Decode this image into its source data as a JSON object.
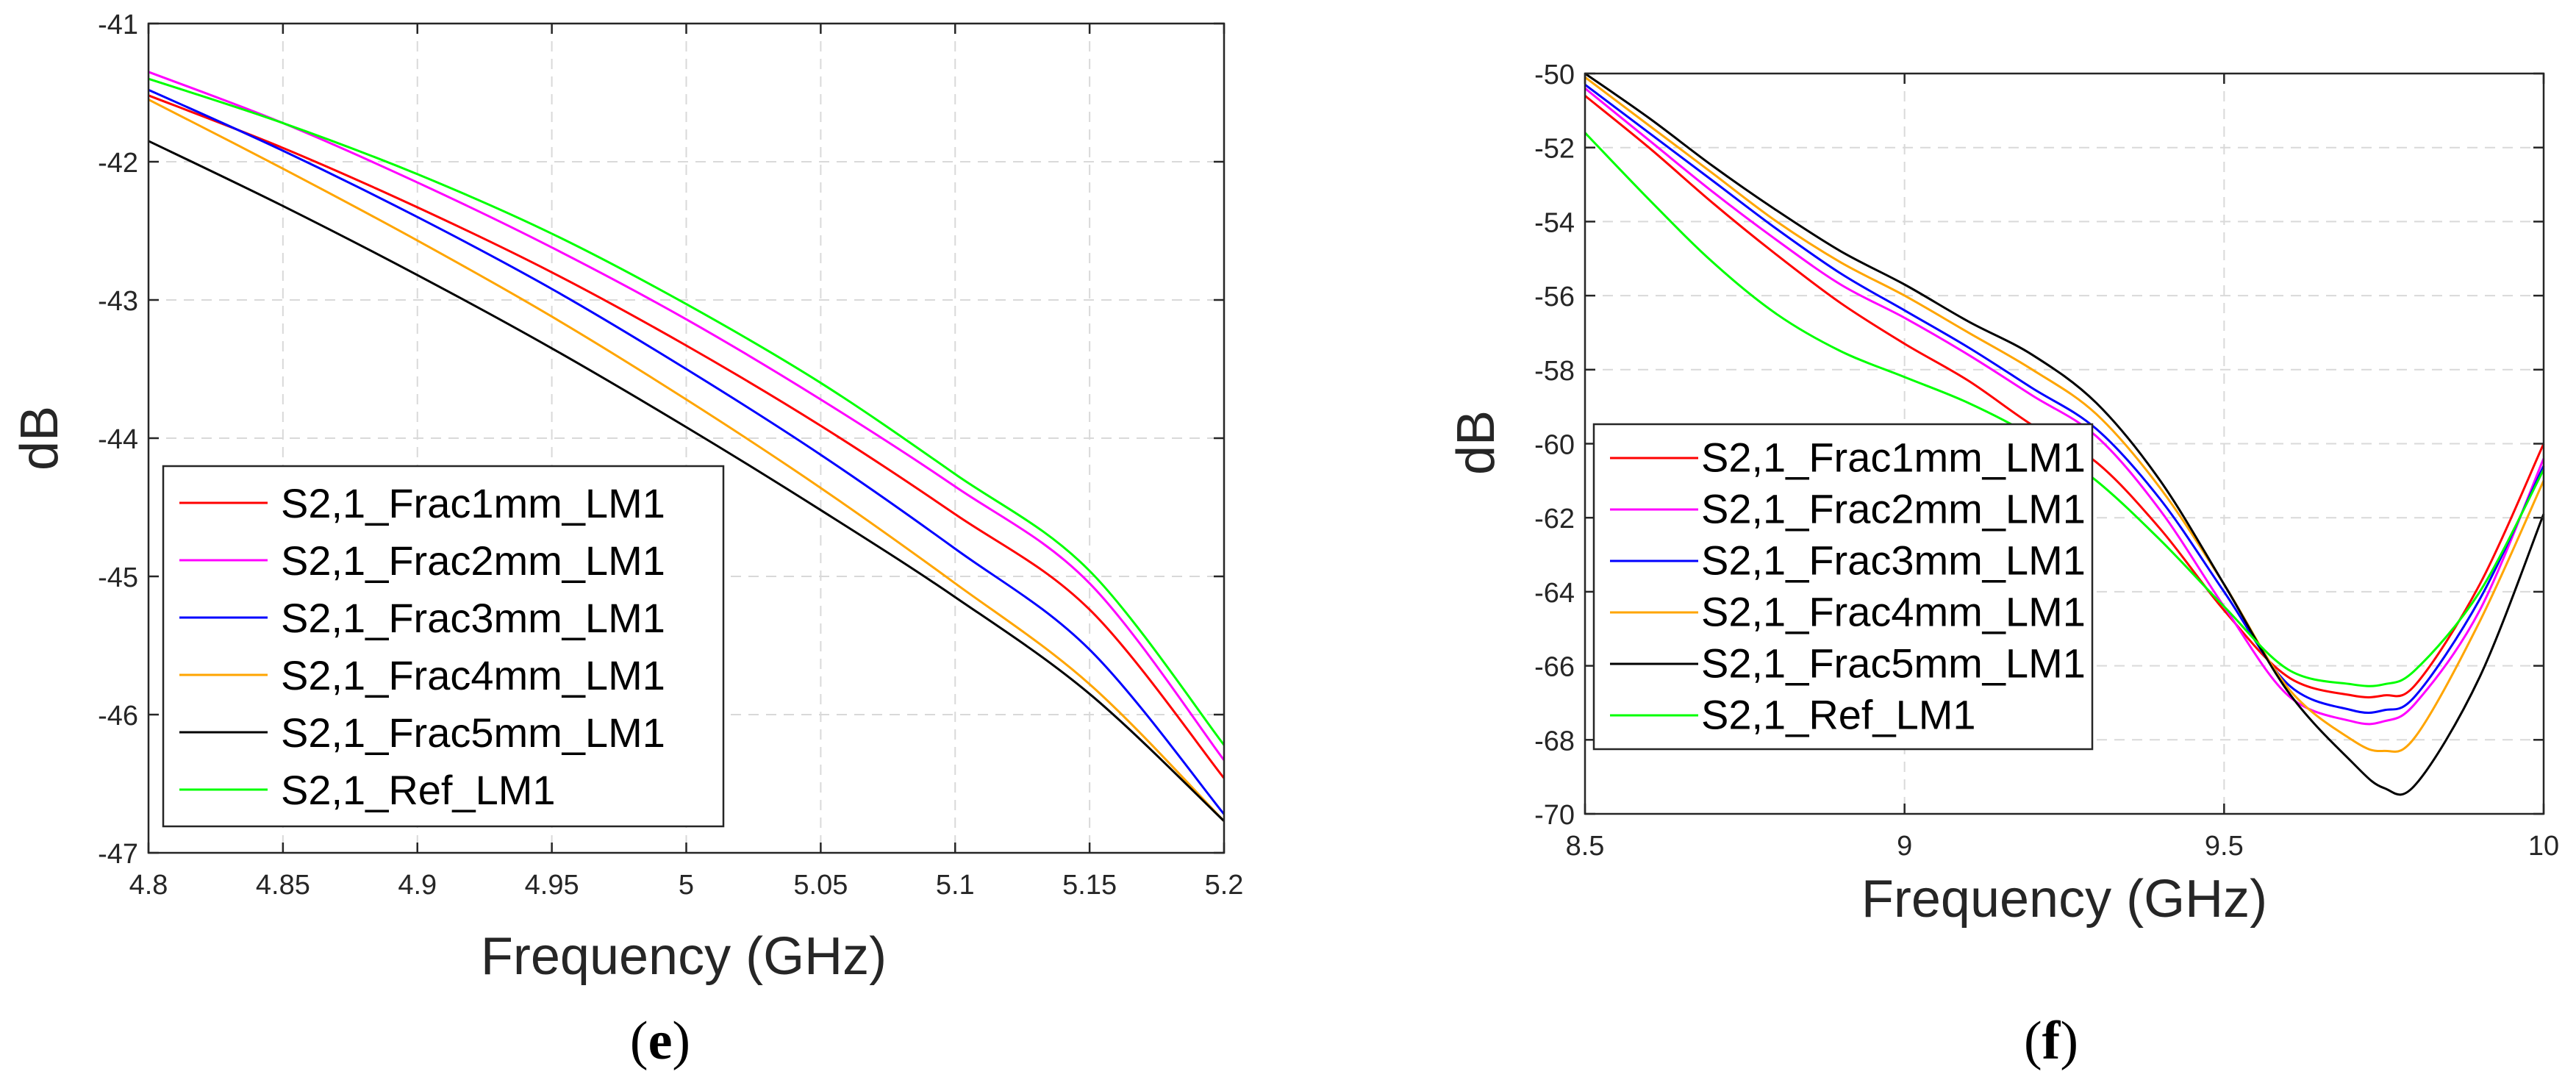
{
  "chart_data": [
    {
      "id": "e",
      "type": "line",
      "caption": "e",
      "xlabel": "Frequency (GHz)",
      "ylabel": "dB",
      "xlim": [
        4.8,
        5.2
      ],
      "ylim": [
        -47,
        -41
      ],
      "xticks": [
        4.8,
        4.85,
        4.9,
        4.95,
        5,
        5.05,
        5.1,
        5.15,
        5.2
      ],
      "xtick_labels": [
        "4.8",
        "4.85",
        "4.9",
        "4.95",
        "5",
        "5.05",
        "5.1",
        "5.15",
        "5.2"
      ],
      "yticks": [
        -47,
        -46,
        -45,
        -44,
        -43,
        -42,
        -41
      ],
      "ytick_labels": [
        "-47",
        "-46",
        "-45",
        "-44",
        "-43",
        "-42",
        "-41"
      ],
      "grid": true,
      "legend_position": "bottom-left",
      "x": [
        4.8,
        4.85,
        4.9,
        4.95,
        5.0,
        5.05,
        5.1,
        5.15,
        5.2
      ],
      "series": [
        {
          "name": "S2,1_Frac1mm_LM1",
          "color": "#ff0000",
          "values": [
            -41.52,
            -41.9,
            -42.33,
            -42.8,
            -43.33,
            -43.91,
            -44.55,
            -45.24,
            -46.46
          ]
        },
        {
          "name": "S2,1_Frac2mm_LM1",
          "color": "#ff00ff",
          "values": [
            -41.35,
            -41.72,
            -42.15,
            -42.62,
            -43.14,
            -43.72,
            -44.35,
            -45.05,
            -46.33
          ]
        },
        {
          "name": "S2,1_Frac3mm_LM1",
          "color": "#0000ff",
          "values": [
            -41.48,
            -41.92,
            -42.4,
            -42.92,
            -43.5,
            -44.12,
            -44.8,
            -45.53,
            -46.72
          ]
        },
        {
          "name": "S2,1_Frac4mm_LM1",
          "color": "#ffa500",
          "values": [
            -41.55,
            -42.05,
            -42.57,
            -43.12,
            -43.72,
            -44.36,
            -45.05,
            -45.78,
            -46.77
          ]
        },
        {
          "name": "S2,1_Frac5mm_LM1",
          "color": "#000000",
          "values": [
            -41.85,
            -42.32,
            -42.82,
            -43.35,
            -43.92,
            -44.52,
            -45.15,
            -45.85,
            -46.77
          ]
        },
        {
          "name": "S2,1_Ref_LM1",
          "color": "#00ff00",
          "values": [
            -41.4,
            -41.72,
            -42.09,
            -42.52,
            -43.03,
            -43.6,
            -44.26,
            -44.96,
            -46.22
          ]
        }
      ]
    },
    {
      "id": "f",
      "type": "line",
      "caption": "f",
      "xlabel": "Frequency (GHz)",
      "ylabel": "dB",
      "xlim": [
        8.5,
        10
      ],
      "ylim": [
        -70,
        -50
      ],
      "xticks": [
        8.5,
        9,
        9.5,
        10
      ],
      "xtick_labels": [
        "8.5",
        "9",
        "9.5",
        "10"
      ],
      "yticks": [
        -70,
        -68,
        -66,
        -64,
        -62,
        -60,
        -58,
        -56,
        -54,
        -52,
        -50
      ],
      "ytick_labels": [
        "-70",
        "-68",
        "-66",
        "-64",
        "-62",
        "-60",
        "-58",
        "-56",
        "-54",
        "-52",
        "-50"
      ],
      "grid": true,
      "legend_position": "middle-left",
      "x": [
        8.5,
        8.6,
        8.7,
        8.8,
        8.9,
        9.0,
        9.1,
        9.2,
        9.3,
        9.4,
        9.5,
        9.6,
        9.7,
        9.75,
        9.8,
        9.9,
        10.0
      ],
      "series": [
        {
          "name": "S2,1_Frac1mm_LM1",
          "color": "#ff0000",
          "values": [
            -50.6,
            -52.0,
            -53.5,
            -54.9,
            -56.2,
            -57.3,
            -58.3,
            -59.5,
            -60.5,
            -62.3,
            -64.5,
            -66.3,
            -66.8,
            -66.8,
            -66.5,
            -63.8,
            -60.0
          ]
        },
        {
          "name": "S2,1_Frac2mm_LM1",
          "color": "#ff00ff",
          "values": [
            -50.4,
            -51.8,
            -53.2,
            -54.5,
            -55.7,
            -56.6,
            -57.6,
            -58.7,
            -59.8,
            -61.8,
            -64.4,
            -66.8,
            -67.5,
            -67.5,
            -67.0,
            -64.5,
            -60.4
          ]
        },
        {
          "name": "S2,1_Frac3mm_LM1",
          "color": "#0000ff",
          "values": [
            -50.3,
            -51.6,
            -52.9,
            -54.2,
            -55.4,
            -56.4,
            -57.4,
            -58.5,
            -59.6,
            -61.5,
            -64.0,
            -66.5,
            -67.2,
            -67.2,
            -66.8,
            -64.2,
            -60.6
          ]
        },
        {
          "name": "S2,1_Frac4mm_LM1",
          "color": "#ffa500",
          "values": [
            -50.1,
            -51.4,
            -52.7,
            -54.0,
            -55.1,
            -56.0,
            -57.0,
            -58.0,
            -59.2,
            -61.2,
            -63.8,
            -66.6,
            -68.0,
            -68.3,
            -67.9,
            -64.8,
            -61.0
          ]
        },
        {
          "name": "S2,1_Frac5mm_LM1",
          "color": "#000000",
          "values": [
            -50.0,
            -51.2,
            -52.5,
            -53.7,
            -54.8,
            -55.7,
            -56.7,
            -57.6,
            -58.9,
            -61.0,
            -63.8,
            -66.7,
            -68.6,
            -69.3,
            -69.2,
            -66.3,
            -61.9
          ]
        },
        {
          "name": "S2,1_Ref_LM1",
          "color": "#00ff00",
          "values": [
            -51.6,
            -53.4,
            -55.1,
            -56.5,
            -57.5,
            -58.2,
            -58.9,
            -59.8,
            -61.0,
            -62.6,
            -64.4,
            -66.1,
            -66.5,
            -66.5,
            -66.1,
            -64.0,
            -60.7
          ]
        }
      ]
    }
  ]
}
